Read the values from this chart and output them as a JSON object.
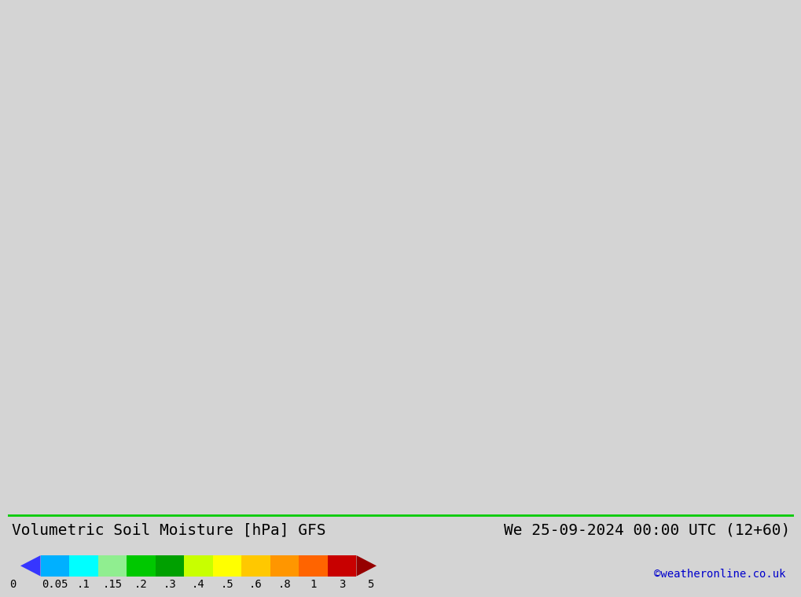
{
  "title_left": "Volumetric Soil Moisture [hPa] GFS",
  "title_right": "We 25-09-2024 00:00 UTC (12+60)",
  "credit": "©weatheronline.co.uk",
  "colorbar_levels": [
    0,
    0.05,
    0.1,
    0.15,
    0.2,
    0.3,
    0.4,
    0.5,
    0.6,
    0.8,
    1,
    3,
    5
  ],
  "colorbar_colors": [
    "#3636ff",
    "#00b0ff",
    "#00ffff",
    "#90ee90",
    "#00c800",
    "#00a000",
    "#c8ff00",
    "#ffff00",
    "#ffc800",
    "#ff9600",
    "#ff6400",
    "#c80000",
    "#960000"
  ],
  "colorbar_labels": [
    "0",
    "0.05",
    ".1",
    ".15",
    ".2",
    ".3",
    ".4",
    ".5",
    ".6",
    ".8",
    "1",
    "3",
    "5"
  ],
  "bg_color": "#e8e8e8",
  "map_bg": "#d0d0d0",
  "title_fontsize": 14,
  "credit_fontsize": 10,
  "colorbar_label_fontsize": 10
}
